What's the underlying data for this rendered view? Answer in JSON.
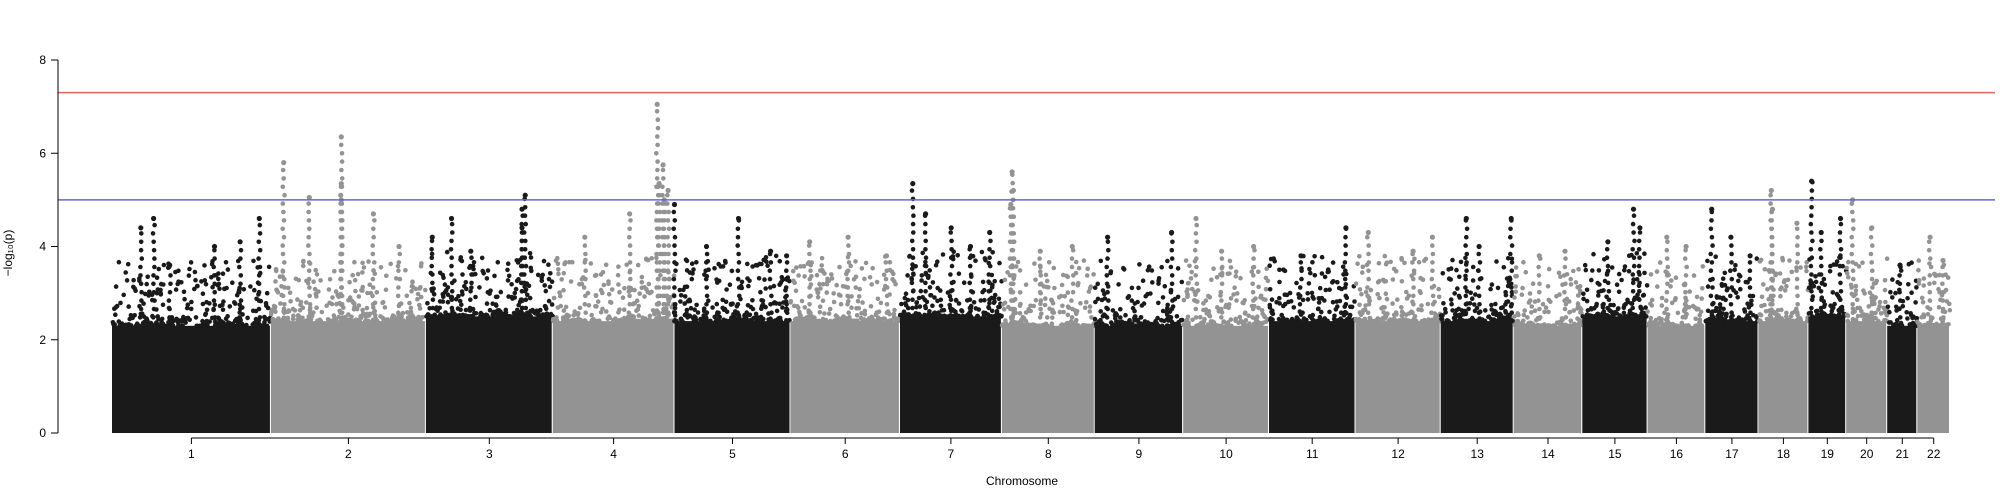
{
  "chart_data": {
    "type": "scatter",
    "subtype": "manhattan",
    "xlabel": "Chromosome",
    "ylabel": "−log₁₀(p)",
    "ylim": [
      0,
      8
    ],
    "yticks": [
      "0",
      "2",
      "4",
      "6",
      "8"
    ],
    "grid": false,
    "legend": "none",
    "colors": {
      "odd": "#1a1a1a",
      "even": "#939393",
      "genome_wide_line": "#e06666",
      "suggestive_line": "#6666dd"
    },
    "thresholds": {
      "genome_wide": 7.3,
      "suggestive": 5.0
    },
    "chromosomes": [
      {
        "label": "1",
        "start": 0,
        "end": 248,
        "base": 2.3,
        "peaks": [
          [
            45,
            4.4
          ],
          [
            65,
            4.6
          ],
          [
            90,
            3.6
          ],
          [
            160,
            4.0
          ],
          [
            200,
            4.1
          ],
          [
            230,
            4.6
          ]
        ]
      },
      {
        "label": "2",
        "start": 248,
        "end": 490,
        "base": 2.4,
        "peaks": [
          [
            20,
            5.8
          ],
          [
            60,
            5.05
          ],
          [
            110,
            6.35
          ],
          [
            110,
            5.35
          ],
          [
            110,
            5.0
          ],
          [
            160,
            4.7
          ],
          [
            200,
            4.0
          ]
        ]
      },
      {
        "label": "3",
        "start": 490,
        "end": 688,
        "base": 2.5,
        "peaks": [
          [
            10,
            4.2
          ],
          [
            40,
            4.6
          ],
          [
            70,
            3.9
          ],
          [
            150,
            4.4
          ],
          [
            155,
            5.1
          ],
          [
            150,
            4.8
          ]
        ]
      },
      {
        "label": "4",
        "start": 688,
        "end": 878,
        "base": 2.4,
        "peaks": [
          [
            50,
            4.2
          ],
          [
            120,
            4.7
          ],
          [
            163,
            7.05
          ],
          [
            166,
            5.35
          ],
          [
            172,
            5.75
          ],
          [
            174,
            5.0
          ],
          [
            180,
            5.2
          ]
        ]
      },
      {
        "label": "5",
        "start": 878,
        "end": 1059,
        "base": 2.4,
        "peaks": [
          [
            0,
            4.9
          ],
          [
            50,
            4.0
          ],
          [
            100,
            4.6
          ],
          [
            150,
            3.9
          ],
          [
            175,
            3.8
          ]
        ]
      },
      {
        "label": "6",
        "start": 1059,
        "end": 1230,
        "base": 2.4,
        "peaks": [
          [
            30,
            4.1
          ],
          [
            90,
            4.2
          ],
          [
            150,
            3.8
          ]
        ]
      },
      {
        "label": "7",
        "start": 1230,
        "end": 1389,
        "base": 2.5,
        "peaks": [
          [
            20,
            5.35
          ],
          [
            40,
            4.7
          ],
          [
            80,
            4.4
          ],
          [
            110,
            4.0
          ],
          [
            140,
            4.3
          ]
        ]
      },
      {
        "label": "8",
        "start": 1389,
        "end": 1534,
        "base": 2.3,
        "peaks": [
          [
            16,
            5.6
          ],
          [
            18,
            5.2
          ],
          [
            14,
            4.9
          ],
          [
            60,
            3.9
          ],
          [
            110,
            4.0
          ]
        ]
      },
      {
        "label": "9",
        "start": 1534,
        "end": 1672,
        "base": 2.3,
        "peaks": [
          [
            20,
            4.2
          ],
          [
            120,
            4.3
          ]
        ]
      },
      {
        "label": "10",
        "start": 1672,
        "end": 1806,
        "base": 2.3,
        "peaks": [
          [
            20,
            4.6
          ],
          [
            60,
            3.9
          ],
          [
            110,
            4.0
          ]
        ]
      },
      {
        "label": "11",
        "start": 1806,
        "end": 1941,
        "base": 2.4,
        "peaks": [
          [
            50,
            3.8
          ],
          [
            120,
            4.4
          ]
        ]
      },
      {
        "label": "12",
        "start": 1941,
        "end": 2074,
        "base": 2.4,
        "peaks": [
          [
            20,
            4.3
          ],
          [
            90,
            3.9
          ],
          [
            120,
            4.2
          ]
        ]
      },
      {
        "label": "13",
        "start": 2074,
        "end": 2188,
        "base": 2.4,
        "peaks": [
          [
            40,
            4.6
          ],
          [
            60,
            4.0
          ],
          [
            110,
            4.6
          ]
        ]
      },
      {
        "label": "14",
        "start": 2188,
        "end": 2295,
        "base": 2.3,
        "peaks": [
          [
            40,
            3.8
          ],
          [
            80,
            3.9
          ]
        ]
      },
      {
        "label": "15",
        "start": 2295,
        "end": 2397,
        "base": 2.5,
        "peaks": [
          [
            40,
            4.1
          ],
          [
            80,
            4.8
          ],
          [
            90,
            4.4
          ]
        ]
      },
      {
        "label": "16",
        "start": 2397,
        "end": 2487,
        "base": 2.3,
        "peaks": [
          [
            30,
            4.2
          ],
          [
            60,
            4.0
          ]
        ]
      },
      {
        "label": "17",
        "start": 2487,
        "end": 2570,
        "base": 2.4,
        "peaks": [
          [
            10,
            4.8
          ],
          [
            40,
            4.2
          ],
          [
            70,
            3.8
          ]
        ]
      },
      {
        "label": "18",
        "start": 2570,
        "end": 2648,
        "base": 2.4,
        "peaks": [
          [
            20,
            5.2
          ],
          [
            22,
            4.8
          ],
          [
            60,
            4.5
          ]
        ]
      },
      {
        "label": "19",
        "start": 2648,
        "end": 2707,
        "base": 2.5,
        "peaks": [
          [
            5,
            5.4
          ],
          [
            20,
            4.3
          ],
          [
            50,
            4.6
          ]
        ]
      },
      {
        "label": "20",
        "start": 2707,
        "end": 2771,
        "base": 2.4,
        "peaks": [
          [
            10,
            5.0
          ],
          [
            40,
            4.4
          ]
        ]
      },
      {
        "label": "21",
        "start": 2771,
        "end": 2818,
        "base": 2.3,
        "peaks": [
          [
            20,
            3.6
          ]
        ]
      },
      {
        "label": "22",
        "start": 2818,
        "end": 2869,
        "base": 2.3,
        "peaks": [
          [
            20,
            4.2
          ],
          [
            40,
            3.7
          ]
        ]
      }
    ]
  }
}
